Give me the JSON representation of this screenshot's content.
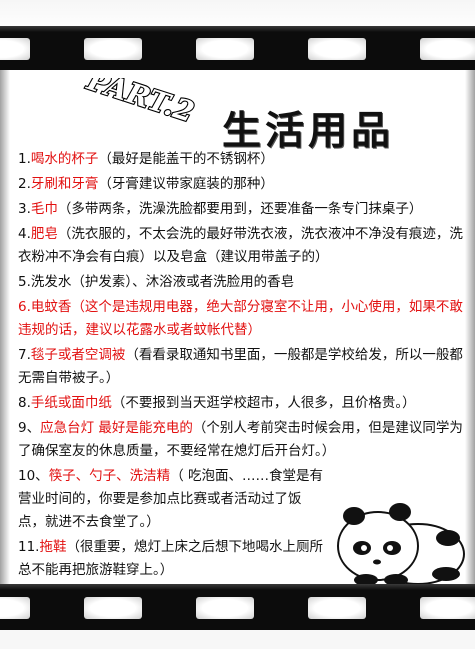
{
  "title": "生活用品",
  "part_logo_text": "PART.2",
  "items": [
    {
      "num": "1.",
      "highlight": "喝水的杯子",
      "desc": "（最好是能盖干的不锈钢杯）"
    },
    {
      "num": "2.",
      "highlight": "牙刷和牙膏",
      "desc": "（牙膏建议带家庭装的那种）"
    },
    {
      "num": "3.",
      "highlight": "毛巾",
      "desc": "（多带两条，洗澡洗脸都要用到，还要准备一条专门抹桌子）"
    },
    {
      "num": "4.",
      "highlight": "肥皂",
      "desc": "（洗衣服的，不太会洗的最好带洗衣液，洗衣液冲不净没有痕迹，洗衣粉冲不净会有白痕）以及皂盒（建议用带盖子的）"
    },
    {
      "num": "5.",
      "highlight": "",
      "desc": "洗发水（护发素）、沐浴液或者洗脸用的香皂"
    },
    {
      "num": "6.",
      "highlight": "电蚊香",
      "desc": "（这个是违规用电器，绝大部分寝室不让用，小心使用，如果不敢违规的话，建议以花露水或者蚊帐代替）"
    },
    {
      "num": "7.",
      "highlight": "毯子或者空调被",
      "desc": "（看看录取通知书里面，一般都是学校给发，所以一般都无需自带被子。）"
    },
    {
      "num": "8.",
      "highlight": "手纸或面巾纸",
      "desc": "（不要报到当天逛学校超市，人很多，且价格贵。）"
    },
    {
      "num": "9、",
      "highlight": "应急台灯 最好是能充电的",
      "desc": "（个别人考前突击时候会用，但是建议同学为了确保室友的休息质量，不要经常在熄灯后开台灯。）"
    },
    {
      "num": "10、",
      "highlight": "筷子、勺子、洗洁精",
      "desc": "（ 吃泡面、……食堂是有营业时间的，你要是参加点比赛或者活动过了饭点，就进不去食堂了。）"
    },
    {
      "num": "11.",
      "highlight": "拖鞋",
      "desc": "（很重要，熄灯上床之后想下地喝水上厕所总不能再把旅游鞋穿上。）"
    }
  ],
  "colors": {
    "highlight": "#e21010",
    "text": "#111111",
    "film": "#0c0c0c"
  },
  "illustration": "panda-icon"
}
